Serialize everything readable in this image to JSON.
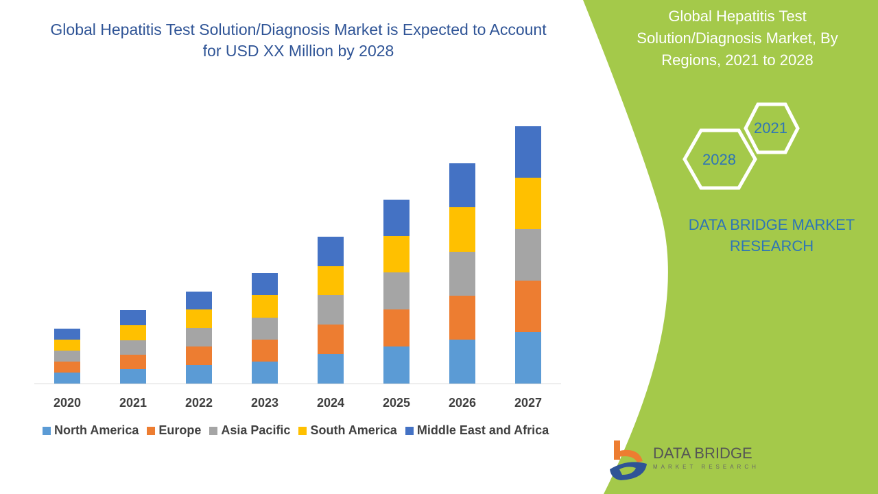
{
  "title": "Global Hepatitis Test Solution/Diagnosis Market is Expected to Account for USD XX Million by 2028",
  "side_panel": {
    "title": "Global Hepatitis Test Solution/Diagnosis Market, By Regions, 2021 to 2028",
    "hex_years": [
      "2021",
      "2028"
    ],
    "brand": "DATA BRIDGE MARKET RESEARCH",
    "panel_color": "#a4c94a"
  },
  "logo": {
    "name": "DATA BRIDGE",
    "tagline": "MARKET RESEARCH"
  },
  "chart_data": {
    "type": "bar",
    "stacked": true,
    "categories": [
      "2020",
      "2021",
      "2022",
      "2023",
      "2024",
      "2025",
      "2026",
      "2027"
    ],
    "series": [
      {
        "name": "North America",
        "color": "#5b9bd5",
        "values": [
          16,
          21,
          27,
          32,
          43,
          54,
          64,
          75
        ]
      },
      {
        "name": "Europe",
        "color": "#ed7d31",
        "values": [
          16,
          21,
          27,
          32,
          43,
          54,
          64,
          75
        ]
      },
      {
        "name": "Asia Pacific",
        "color": "#a5a5a5",
        "values": [
          16,
          21,
          27,
          32,
          43,
          54,
          64,
          75
        ]
      },
      {
        "name": "South America",
        "color": "#ffc000",
        "values": [
          16,
          22,
          27,
          33,
          42,
          53,
          65,
          75
        ]
      },
      {
        "name": "Middle East and Africa",
        "color": "#4472c4",
        "values": [
          16,
          22,
          26,
          32,
          43,
          53,
          64,
          75
        ]
      }
    ],
    "ylim": [
      0,
      380
    ],
    "grid": false,
    "y_axis_labels": false,
    "legend_position": "bottom"
  }
}
